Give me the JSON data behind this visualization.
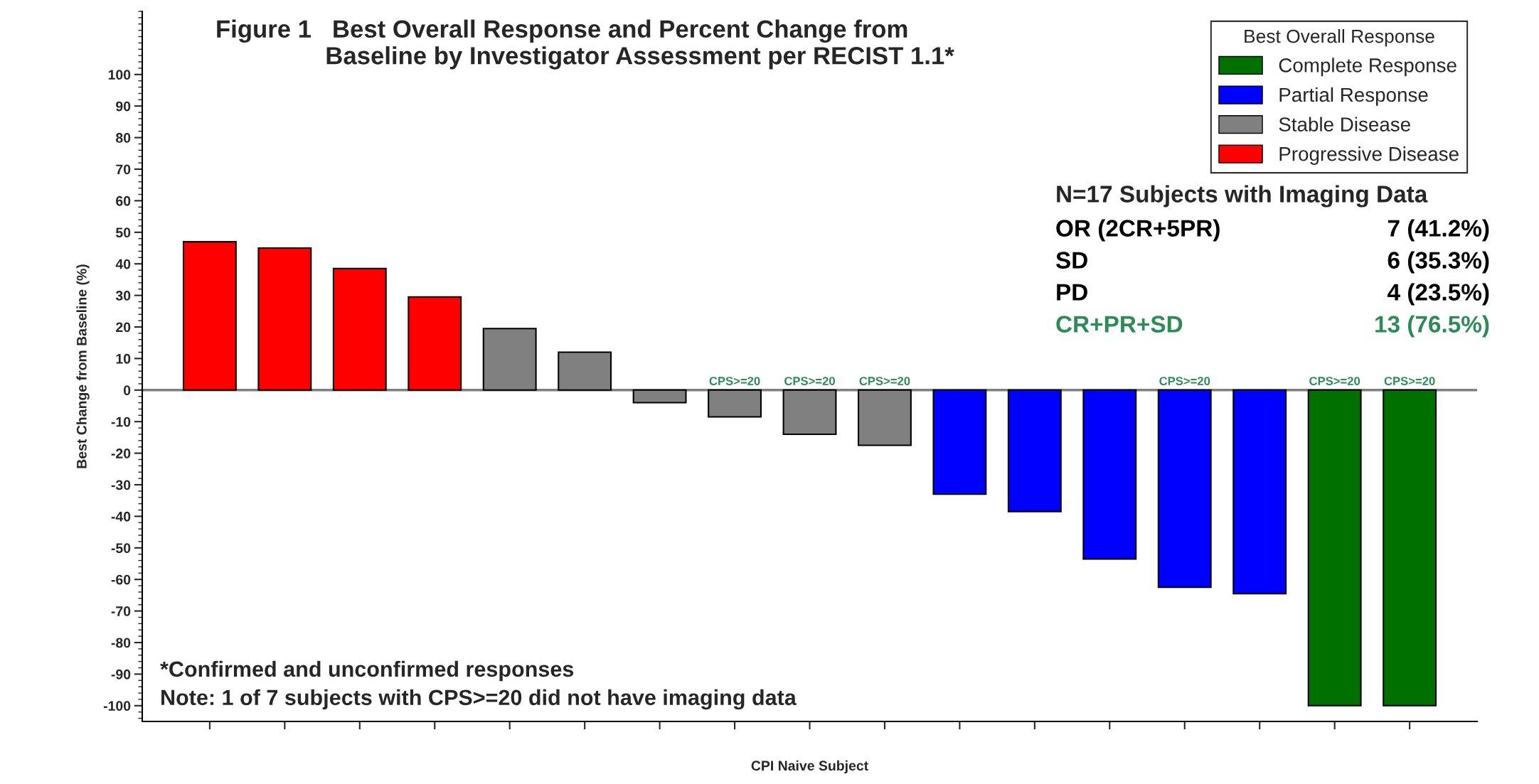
{
  "chart_data": {
    "type": "bar",
    "title": "Figure 1   Best Overall Response and Percent Change from\n                Baseline by Investigator Assessment per RECIST 1.1*",
    "ylabel": "Best Change from Baseline (%)",
    "xlabel": "CPI Naive Subject",
    "legend_title": "Best Overall Response",
    "legend": "top right",
    "grid": false,
    "categories": [
      null,
      null,
      null,
      null,
      null,
      null,
      null,
      null,
      null,
      null,
      null,
      null,
      null,
      null,
      null,
      null,
      null
    ],
    "series": [
      {
        "name": "Complete Response",
        "color": "#007000",
        "values": [
          null,
          null,
          null,
          null,
          null,
          null,
          null,
          null,
          null,
          null,
          null,
          null,
          null,
          null,
          null,
          -100,
          -100
        ],
        "value_labels": [
          null,
          null,
          null,
          null,
          null,
          null,
          null,
          null,
          null,
          null,
          null,
          null,
          null,
          null,
          null,
          "CPS>=20",
          "CPS>=20"
        ]
      },
      {
        "name": "Partial Response",
        "color": "#0000ff",
        "values": [
          null,
          null,
          null,
          null,
          null,
          null,
          null,
          null,
          null,
          null,
          -33,
          -38.5,
          -53.5,
          -62.5,
          -64.5,
          null,
          null
        ],
        "value_labels": [
          null,
          null,
          null,
          null,
          null,
          null,
          null,
          null,
          null,
          null,
          null,
          null,
          null,
          "CPS>=20",
          null,
          null,
          null
        ]
      },
      {
        "name": "Stable Disease",
        "color": "#808080",
        "values": [
          null,
          null,
          null,
          null,
          19.5,
          12,
          -4,
          -8.5,
          -14,
          -17.5,
          null,
          null,
          null,
          null,
          null,
          null,
          null
        ],
        "value_labels": [
          null,
          null,
          null,
          null,
          null,
          null,
          null,
          "CPS>=20",
          "CPS>=20",
          "CPS>=20",
          null,
          null,
          null,
          null,
          null,
          null,
          null
        ]
      },
      {
        "name": "Progressive Disease",
        "color": "#ff0000",
        "values": [
          47,
          45,
          38.5,
          29.5,
          null,
          null,
          null,
          null,
          null,
          null,
          null,
          null,
          null,
          null,
          null,
          null,
          null
        ]
      }
    ],
    "ylim": [
      -105,
      120
    ],
    "yticks": [
      -100,
      -90,
      -80,
      -70,
      -60,
      -50,
      -40,
      -30,
      -20,
      -10,
      0,
      10,
      20,
      30,
      40,
      50,
      60,
      70,
      80,
      90,
      100
    ],
    "ref_lines": [
      {
        "axis": "y",
        "value": 0,
        "color": "#808080"
      }
    ],
    "annotations": [
      "N=17 Subjects with Imaging Data",
      "OR (2CR+5PR)",
      "7 (41.2%)",
      "SD",
      "6 (35.3%)",
      "PD",
      "4 (23.5%)",
      "CR+PR+SD",
      "13 (76.5%)",
      "*Confirmed and unconfirmed responses",
      "Note: 1 of 7 subjects with CPS>=20 did not have imaging data"
    ]
  }
}
